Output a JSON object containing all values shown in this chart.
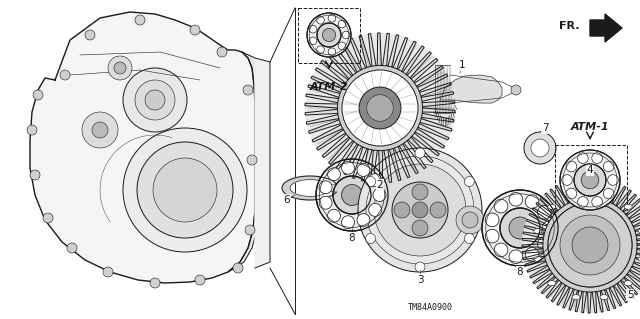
{
  "bg_color": "#ffffff",
  "fig_width": 6.4,
  "fig_height": 3.19,
  "dpi": 100,
  "line_color": "#1a1a1a",
  "gray_color": "#666666",
  "light_gray": "#cccccc",
  "diagram_code": "TM84A0900",
  "atm2_label": "ATM-2",
  "atm1_label": "ATM-1",
  "fr_label": "FR.",
  "part_numbers": [
    "1",
    "2",
    "3",
    "4",
    "5",
    "6",
    "7",
    "8",
    "8"
  ]
}
